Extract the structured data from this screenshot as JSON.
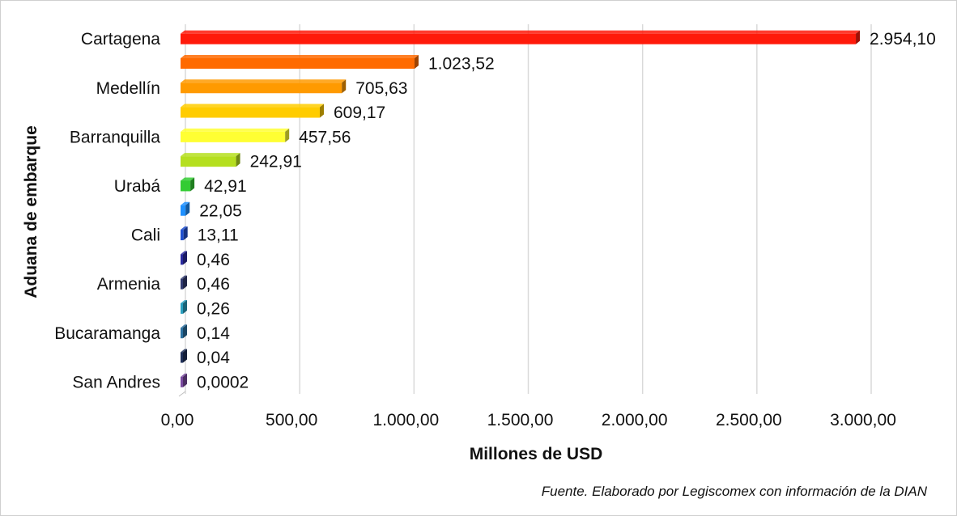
{
  "chart_data": {
    "type": "bar",
    "orientation": "horizontal",
    "categories": [
      "Cartagena",
      "",
      "Medellín",
      "",
      "Barranquilla",
      "",
      "Urabá",
      "",
      "Cali",
      "",
      "Armenia",
      "",
      "Bucaramanga",
      "",
      "San Andres"
    ],
    "values": [
      2954.1,
      1023.52,
      705.63,
      609.17,
      457.56,
      242.91,
      42.91,
      22.05,
      13.11,
      0.46,
      0.46,
      0.26,
      0.14,
      0.04,
      0.0002
    ],
    "value_labels": [
      "2.954,10",
      "1.023,52",
      "705,63",
      "609,17",
      "457,56",
      "242,91",
      "42,91",
      "22,05",
      "13,11",
      "0,46",
      "0,46",
      "0,26",
      "0,14",
      "0,04",
      "0,0002"
    ],
    "colors": [
      "#ff1a0a",
      "#ff6a00",
      "#ff9a00",
      "#ffcc00",
      "#ffff33",
      "#b5df1f",
      "#33cc33",
      "#1e90ff",
      "#1e4fd0",
      "#2a2aa0",
      "#303a70",
      "#2aa0c0",
      "#2a70a0",
      "#20305a",
      "#7a4aa0"
    ],
    "xlim": [
      0,
      3000
    ],
    "x_ticks": [
      0,
      500,
      1000,
      1500,
      2000,
      2500,
      3000
    ],
    "x_tick_labels": [
      "0,00",
      "500,00",
      "1.000,00",
      "1.500,00",
      "2.000,00",
      "2.500,00",
      "3.000,00"
    ],
    "xlabel": "Millones de USD",
    "ylabel": "Aduana de embarque",
    "grid": true,
    "source_note": "Fuente. Elaborado por Legiscomex con información de la DIAN"
  }
}
